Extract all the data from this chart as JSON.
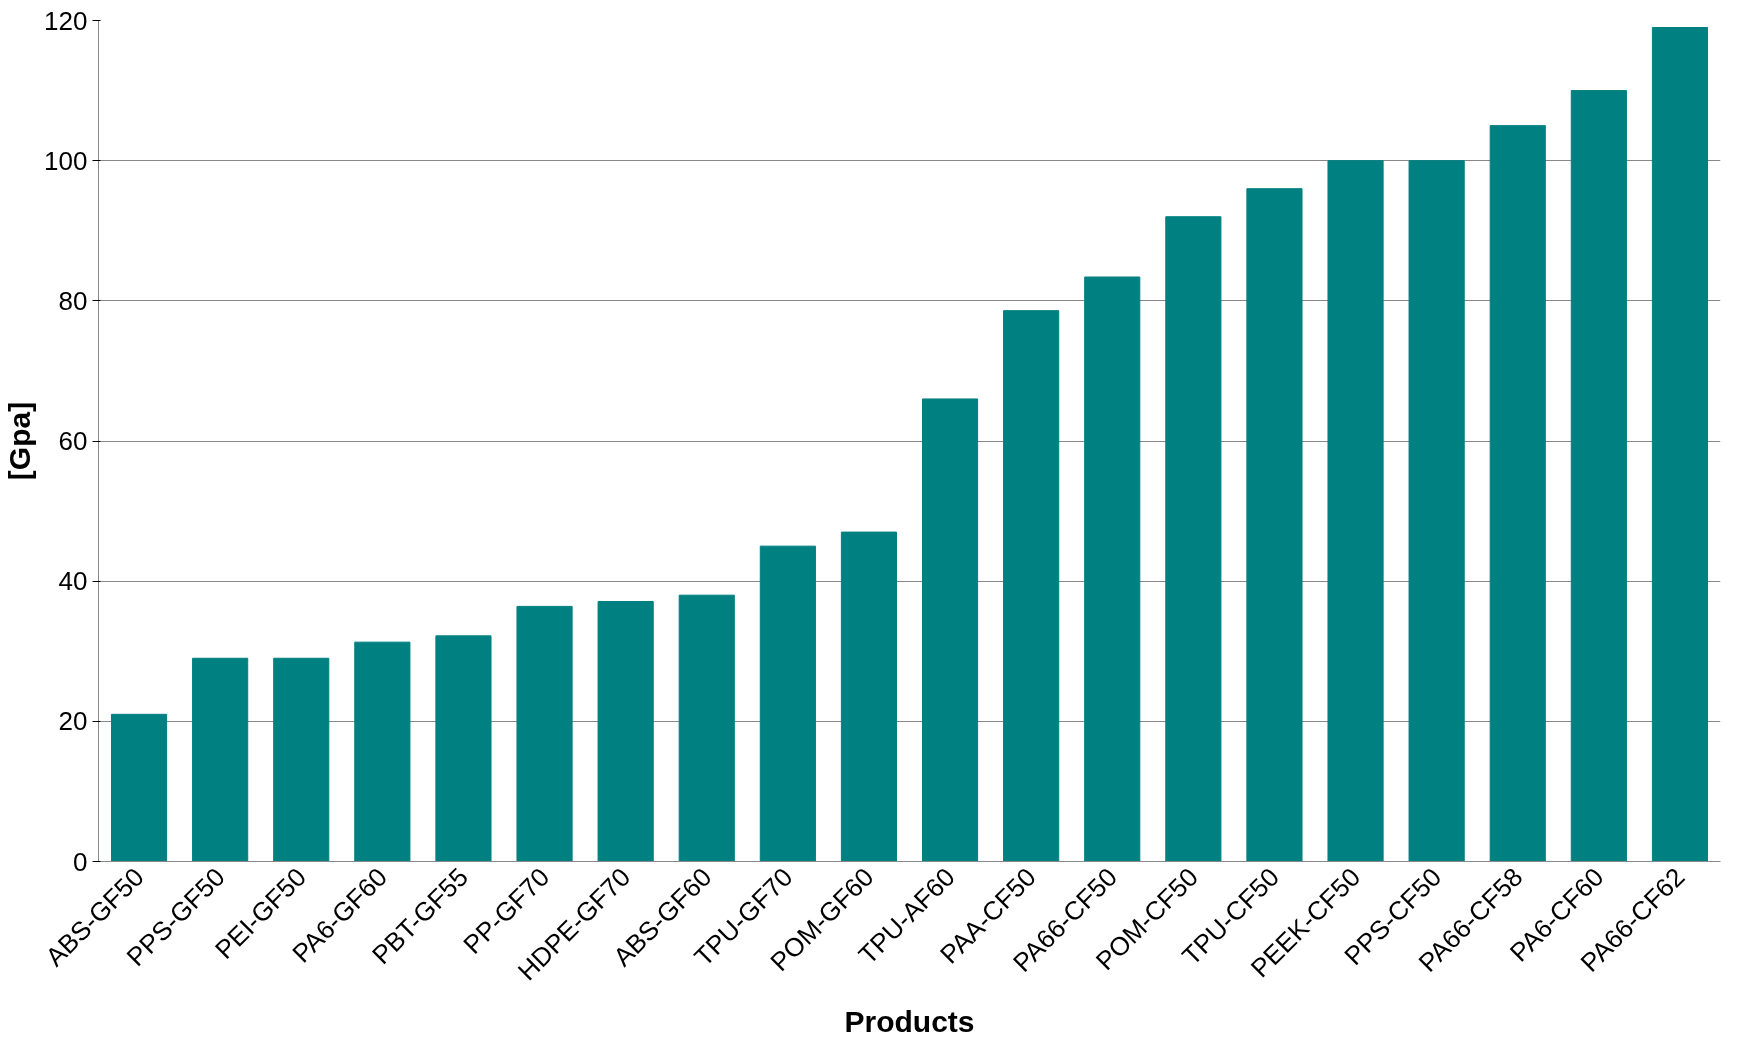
{
  "chart_data": {
    "type": "bar",
    "xlabel": "Products",
    "ylabel": "[Gpa]",
    "categories": [
      "ABS-GF50",
      "PPS-GF50",
      "PEI-GF50",
      "PA6-GF60",
      "PBT-GF55",
      "PP-GF70",
      "HDPE-GF70",
      "ABS-GF60",
      "TPU-GF70",
      "POM-GF60",
      "TPU-AF60",
      "PAA-CF50",
      "PA66-CF50",
      "POM-CF50",
      "TPU-CF50",
      "PEEK-CF50",
      "PPS-CF50",
      "PA66-CF58",
      "PA6-CF60",
      "PA66-CF62"
    ],
    "values": [
      21,
      29,
      29,
      31.3,
      32.2,
      36.4,
      37.1,
      38,
      45,
      47,
      66,
      78.6,
      83.4,
      92,
      96,
      100,
      100,
      105,
      110,
      119
    ],
    "color": "#008080",
    "ylim": [
      0,
      120
    ],
    "yticks": [
      0,
      20,
      40,
      60,
      80,
      100,
      120
    ],
    "grid": "y"
  }
}
